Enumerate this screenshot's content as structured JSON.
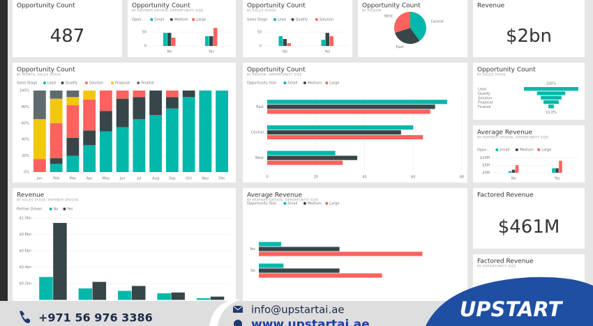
{
  "cards": [
    {
      "title": "Opportunity Count",
      "value": 487
    },
    {
      "title": "Revenue",
      "value": "$2bn"
    },
    {
      "title": "Factored Revenue",
      "value": "$461M"
    }
  ],
  "chart_data": [
    {
      "type": "bar",
      "title": "Opportunity Count",
      "subtitle": "BY PARTNER DRIVEN, OPPORTUNITY SIZE",
      "legend_title": "Oppo...",
      "categories": [
        "No",
        "Yes"
      ],
      "series": [
        {
          "name": "Small",
          "color": "#01b8aa",
          "values": [
            47,
            35
          ]
        },
        {
          "name": "Medium",
          "color": "#374649",
          "values": [
            47,
            35
          ]
        },
        {
          "name": "Large",
          "color": "#fd625e",
          "values": [
            30,
            65
          ]
        }
      ],
      "ylim": [
        0,
        70
      ],
      "yticks": [
        0,
        50
      ]
    },
    {
      "type": "bar",
      "title": "Opportunity Count",
      "subtitle": "BY SALES STAGE",
      "legend_title": "Sales Stage",
      "categories": [
        "No",
        "Yes"
      ],
      "series": [
        {
          "name": "Lead",
          "color": "#01b8aa",
          "values": [
            35,
            22
          ]
        },
        {
          "name": "Qualify",
          "color": "#374649",
          "values": [
            25,
            47
          ]
        },
        {
          "name": "Solution",
          "color": "#fd625e",
          "values": [
            10,
            35
          ]
        }
      ],
      "ylim": [
        0,
        70
      ],
      "yticks": [
        0,
        50
      ]
    },
    {
      "type": "pie",
      "title": "Opportunity Count",
      "subtitle": "BY REGION",
      "categories": [
        "Central",
        "East",
        "West"
      ],
      "values": [
        40,
        30,
        30
      ],
      "colors": [
        "#01b8aa",
        "#374649",
        "#fd625e"
      ]
    },
    {
      "type": "stacked_bar",
      "title": "Opportunity Count",
      "subtitle": "BY MONTH, SALES STAGE",
      "legend_title": "Sales Stage",
      "categories": [
        "Jan",
        "Feb",
        "Mar",
        "Apr",
        "May",
        "Jun",
        "Jul",
        "Aug",
        "Sep",
        "Oct",
        "Nov",
        "Dec"
      ],
      "series": [
        {
          "name": "Lead",
          "color": "#01b8aa",
          "values": [
            0,
            10,
            20,
            33,
            50,
            55,
            65,
            70,
            78,
            92,
            100,
            100
          ]
        },
        {
          "name": "Qualify",
          "color": "#374649",
          "values": [
            0,
            7,
            22,
            18,
            25,
            35,
            27,
            30,
            14,
            8,
            0,
            0
          ]
        },
        {
          "name": "Solution",
          "color": "#fd625e",
          "values": [
            16,
            43,
            40,
            38,
            25,
            10,
            8,
            0,
            8,
            0,
            0,
            0
          ]
        },
        {
          "name": "Proposal",
          "color": "#f2c80f",
          "values": [
            49,
            30,
            10,
            11,
            0,
            0,
            0,
            0,
            0,
            0,
            0,
            0
          ]
        },
        {
          "name": "Finalize",
          "color": "#5f6b6d",
          "values": [
            35,
            10,
            8,
            0,
            0,
            0,
            0,
            0,
            0,
            0,
            0,
            0
          ]
        }
      ],
      "ylim": [
        0,
        100
      ],
      "yticks": [
        {
          "value": 0,
          "label": "0%"
        },
        {
          "value": 20,
          "label": "20%"
        },
        {
          "value": 40,
          "label": "40%"
        },
        {
          "value": 60,
          "label": "60%"
        },
        {
          "value": 80,
          "label": "80%"
        },
        {
          "value": 100,
          "label": "100%"
        }
      ]
    },
    {
      "type": "barh",
      "title": "Opportunity Count",
      "subtitle": "BY REGION, OPPORTUNITY SIZE",
      "legend_title": "Opportunity Size",
      "categories": [
        "East",
        "Central",
        "West"
      ],
      "series": [
        {
          "name": "Small",
          "color": "#01b8aa",
          "values": [
            74,
            60,
            28
          ]
        },
        {
          "name": "Medium",
          "color": "#374649",
          "values": [
            69,
            55,
            37
          ]
        },
        {
          "name": "Large",
          "color": "#fd625e",
          "values": [
            67,
            64,
            31
          ]
        }
      ],
      "xlim": [
        0,
        80
      ],
      "xticks": [
        0,
        20,
        40,
        60,
        80
      ]
    },
    {
      "type": "funnel",
      "title": "Opportunity Count",
      "subtitle": "BY SALES STAGE",
      "categories": [
        "Lead",
        "Qualify",
        "Solution",
        "Proposal",
        "Finalize"
      ],
      "values": [
        100,
        52,
        38,
        28,
        10
      ],
      "value_labels": [
        "100%",
        null,
        null,
        null,
        "10.0%"
      ],
      "color": "#01b8aa"
    },
    {
      "type": "bar",
      "title": "Average Revenue",
      "subtitle": "BY PARTNER DRIVEN, OPPORTUNITY SIZE",
      "legend_title": "Oppo...",
      "categories": [
        "No",
        "Yes"
      ],
      "series": [
        {
          "name": "Small",
          "color": "#01b8aa",
          "values": [
            1,
            3
          ]
        },
        {
          "name": "Medium",
          "color": "#374649",
          "values": [
            2,
            3
          ]
        },
        {
          "name": "Large",
          "color": "#fd625e",
          "values": [
            5,
            8
          ]
        }
      ],
      "ylim": [
        0,
        12
      ],
      "yticks": [
        {
          "value": 0,
          "label": "$0M"
        },
        {
          "value": 5,
          "label": "$5M"
        },
        {
          "value": 10,
          "label": "$10M"
        }
      ]
    },
    {
      "type": "bar",
      "title": "Revenue",
      "subtitle": "BY SALES STAGE, PARTNER DRIVEN",
      "legend_title": "Partner Driven",
      "categories": [
        null,
        null,
        null,
        null,
        null
      ],
      "series": [
        {
          "name": "No",
          "color": "#01b8aa",
          "values": [
            0.28,
            0.14,
            0.11,
            0.08,
            0.02
          ]
        },
        {
          "name": "Yes",
          "color": "#374649",
          "values": [
            0.94,
            0.22,
            0.17,
            0.09,
            0.04
          ]
        }
      ],
      "ylim": [
        0,
        1
      ],
      "yticks": [
        {
          "value": 0.2,
          "label": "$0.2bn"
        },
        {
          "value": 0.4,
          "label": "$0.4bn"
        },
        {
          "value": 0.6,
          "label": "$0.6bn"
        },
        {
          "value": 0.8,
          "label": "$0.8bn"
        },
        {
          "value": 1,
          "label": "$1.0bn"
        }
      ]
    },
    {
      "type": "barh",
      "title": "Average Revenue",
      "subtitle": "BY PARTNER DRIVEN, OPPORTUNITY SIZE",
      "legend_title": "Opportunity Size",
      "categories": [
        "Yes",
        "No"
      ],
      "series": [
        {
          "name": "Small",
          "color": "#01b8aa",
          "values": [
            1.0,
            1.1
          ]
        },
        {
          "name": "Medium",
          "color": "#374649",
          "values": [
            3.6,
            3.6
          ]
        },
        {
          "name": "Large",
          "color": "#fd625e",
          "values": [
            7.3,
            5.5
          ]
        }
      ],
      "xlim": [
        0,
        9
      ]
    },
    {
      "type": "bar",
      "title": "Factored Revenue",
      "subtitle": "BY OPPORTUNITY SIZE"
    }
  ],
  "footer": {
    "phone": "+971 56 976 3386",
    "email": "info@upstartai.ae",
    "website": "www.upstartai.ae",
    "brand": "UPSTART"
  }
}
